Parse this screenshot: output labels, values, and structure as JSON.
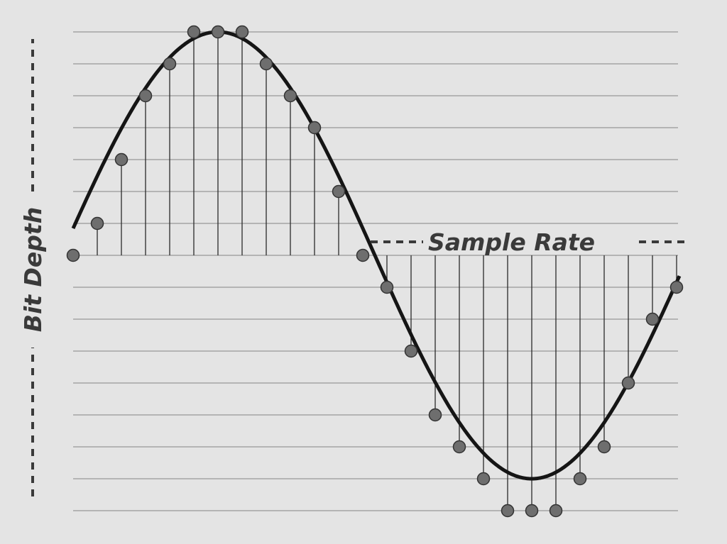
{
  "labels": {
    "bit_depth": "Bit Depth",
    "sample_rate": "Sample Rate"
  }
}
